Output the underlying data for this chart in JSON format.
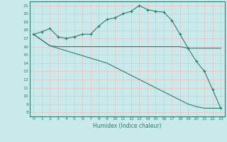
{
  "line1_x": [
    0,
    1,
    2,
    3,
    4,
    5,
    6,
    7,
    8,
    9,
    10,
    11,
    12,
    13,
    14,
    15,
    16,
    17,
    18,
    19,
    20,
    21,
    22,
    23
  ],
  "line1_y": [
    17.5,
    17.8,
    18.2,
    17.2,
    17.0,
    17.2,
    17.5,
    17.5,
    18.5,
    19.3,
    19.5,
    20.0,
    20.3,
    21.0,
    20.5,
    20.3,
    20.2,
    19.2,
    17.5,
    15.8,
    14.2,
    13.0,
    10.8,
    8.5
  ],
  "line2_x": [
    0,
    2,
    3,
    6,
    7,
    8,
    9,
    10,
    11,
    12,
    13,
    14,
    15,
    16,
    17,
    18,
    19,
    20,
    21,
    22,
    23
  ],
  "line2_y": [
    17.5,
    16.1,
    16.0,
    16.0,
    16.0,
    16.0,
    16.0,
    16.0,
    16.0,
    16.0,
    16.0,
    16.0,
    16.0,
    16.0,
    16.0,
    16.0,
    15.8,
    15.8,
    15.8,
    15.8,
    15.8
  ],
  "line3_x": [
    0,
    2,
    3,
    4,
    5,
    6,
    7,
    8,
    9,
    10,
    11,
    12,
    13,
    14,
    15,
    16,
    17,
    18,
    19,
    20,
    21,
    22,
    23
  ],
  "line3_y": [
    17.5,
    16.1,
    15.8,
    15.5,
    15.2,
    14.9,
    14.6,
    14.3,
    14.0,
    13.5,
    13.0,
    12.5,
    12.0,
    11.5,
    11.0,
    10.5,
    10.0,
    9.5,
    9.0,
    8.7,
    8.5,
    8.5,
    8.5
  ],
  "color": "#2e7d6e",
  "bg_color": "#c8eaea",
  "grid_color": "#e8c8c8",
  "xlabel": "Humidex (Indice chaleur)",
  "xlim": [
    -0.5,
    23.5
  ],
  "ylim": [
    7.5,
    21.5
  ],
  "xticks": [
    0,
    1,
    2,
    3,
    4,
    5,
    6,
    7,
    8,
    9,
    10,
    11,
    12,
    13,
    14,
    15,
    16,
    17,
    18,
    19,
    20,
    21,
    22,
    23
  ],
  "yticks": [
    8,
    9,
    10,
    11,
    12,
    13,
    14,
    15,
    16,
    17,
    18,
    19,
    20,
    21
  ],
  "marker": "+"
}
